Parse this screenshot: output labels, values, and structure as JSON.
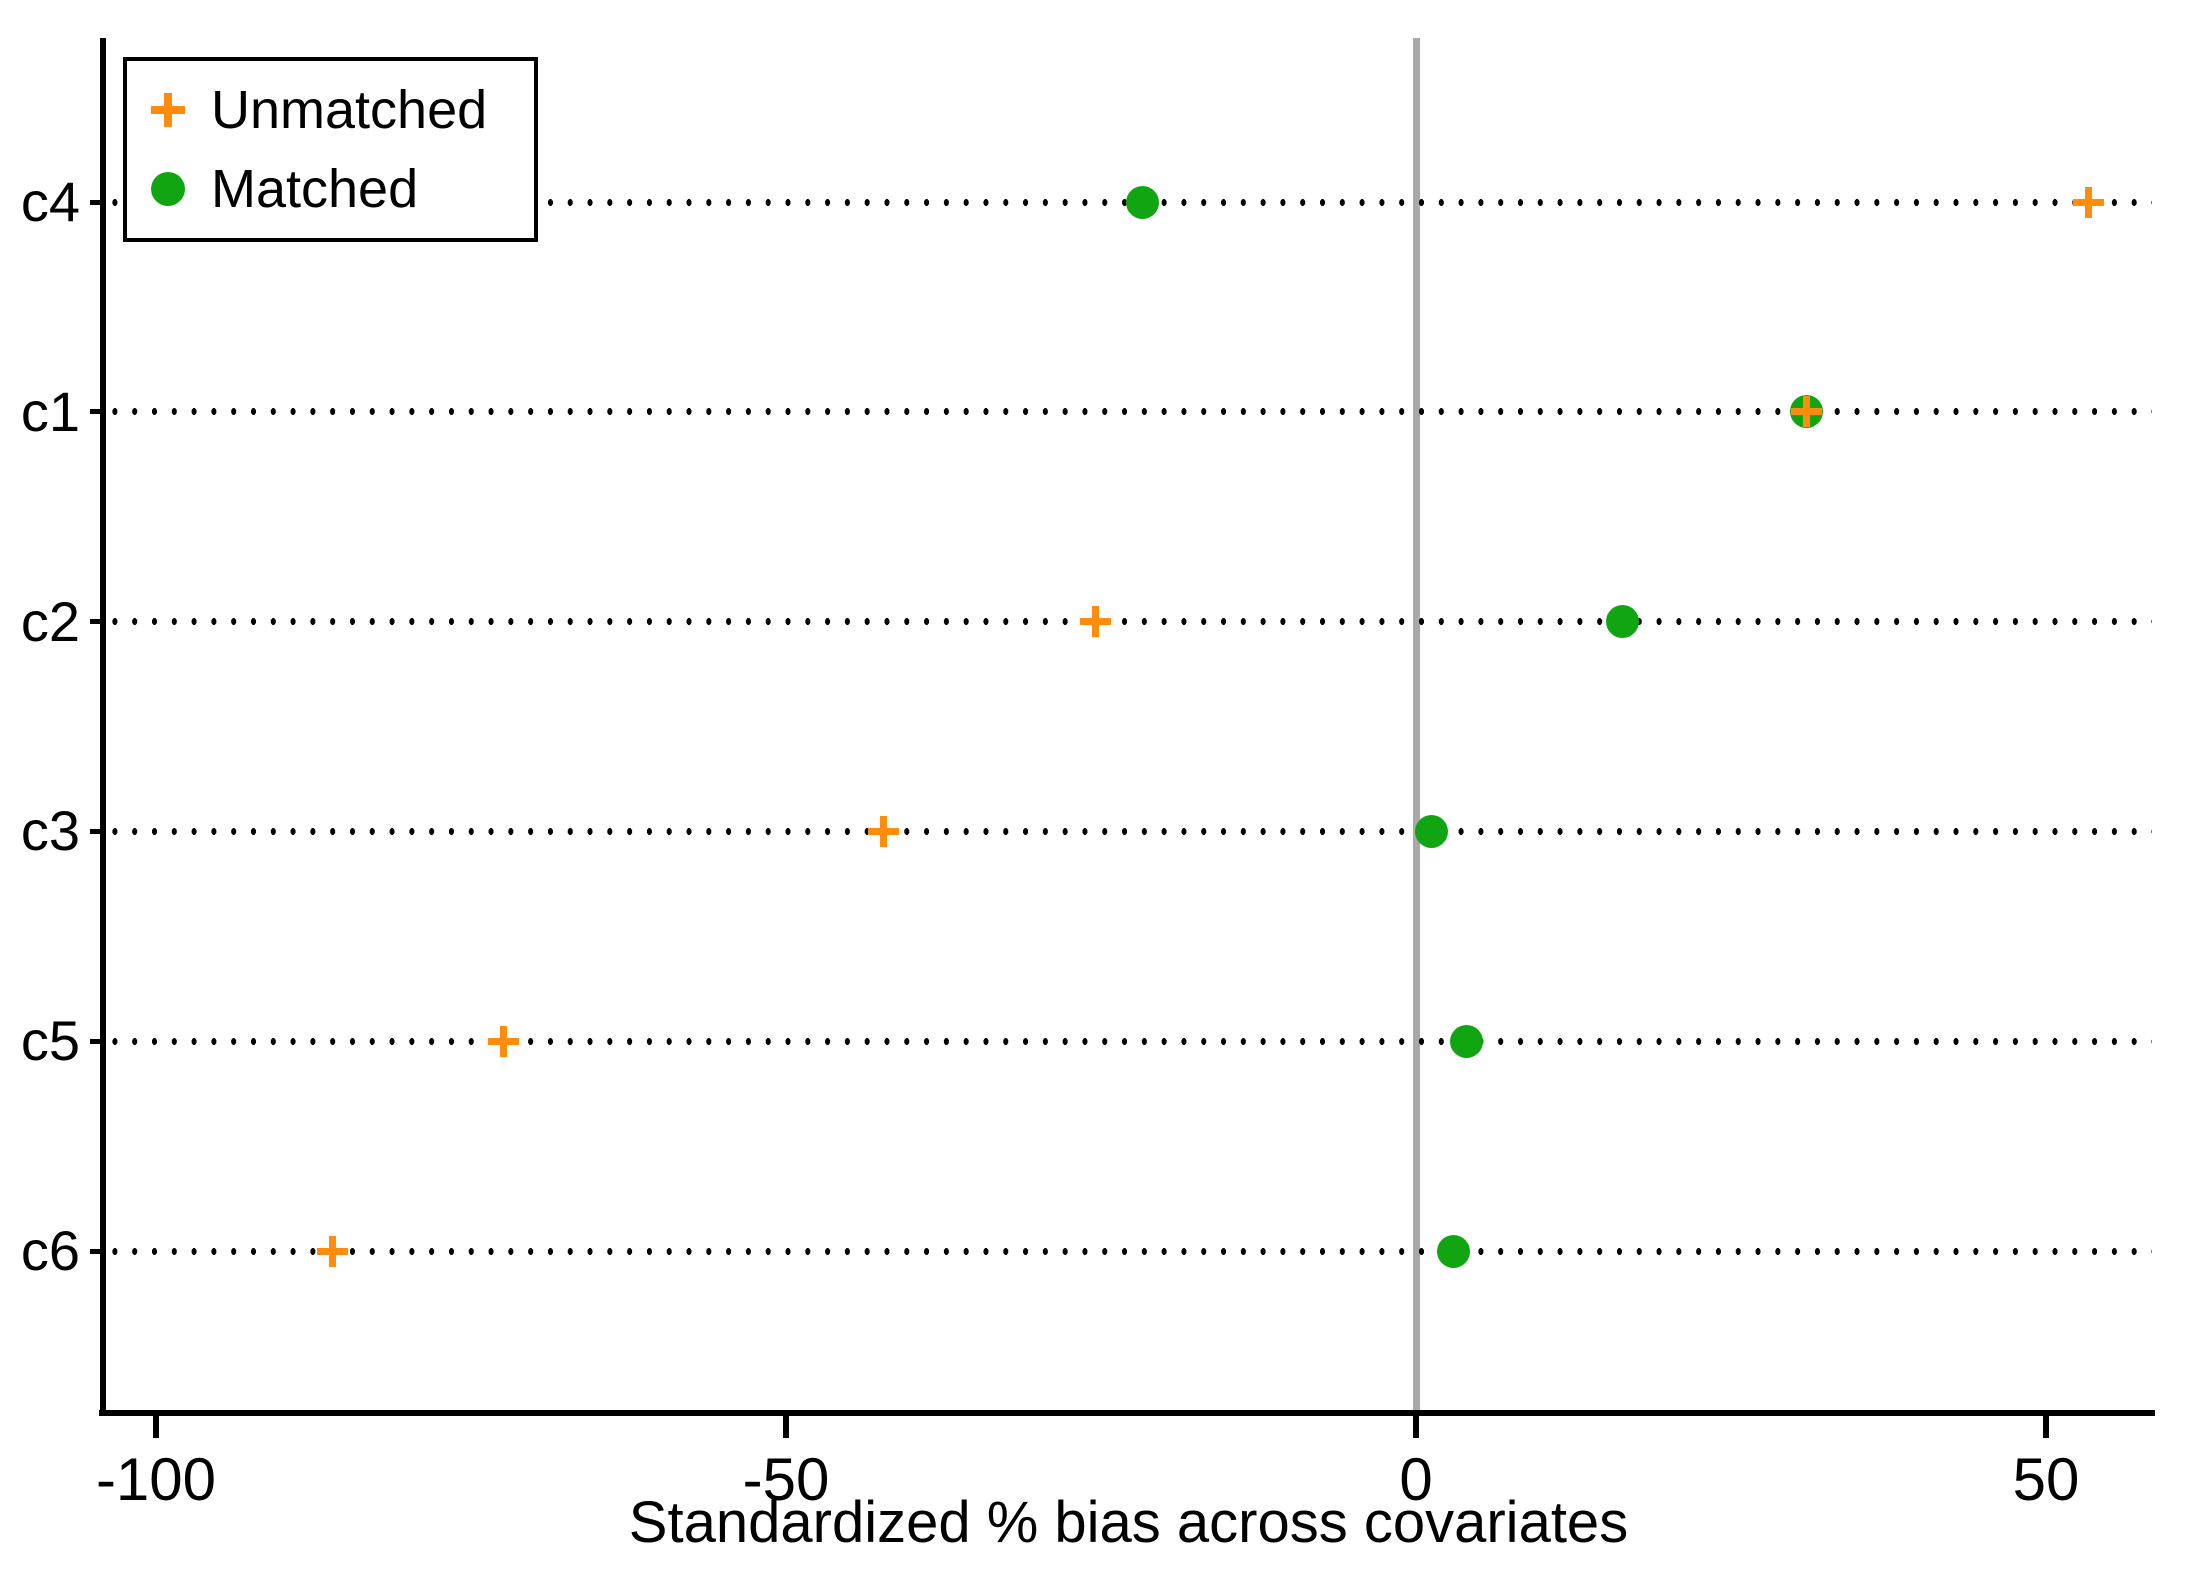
{
  "chart_data": {
    "type": "scatter",
    "variant": "horizontal-dot-plot",
    "title": "",
    "xlabel": "Standardized % bias across covariates",
    "ylabel": "",
    "categories": [
      "c4",
      "c1",
      "c2",
      "c3",
      "c5",
      "c6"
    ],
    "series": [
      {
        "name": "Matched",
        "marker": "circle",
        "color": "#11a611",
        "values": [
          -21.7,
          31.0,
          16.4,
          1.2,
          4.0,
          3.0
        ]
      },
      {
        "name": "Unmatched",
        "marker": "plus",
        "color": "#ff8d0d",
        "values": [
          53.4,
          31.0,
          -25.4,
          -42.3,
          -72.4,
          -86.0
        ]
      }
    ],
    "x_ticks": [
      -100,
      -50,
      0,
      50
    ],
    "xlim": [
      -104,
      58.4
    ],
    "zero_line": {
      "x": 0,
      "color": "#a8a8a8"
    },
    "gridlines": "horizontal-dotted-black",
    "legend_position": "top-left",
    "background": "#ffffff"
  },
  "legend": {
    "unmatched_label": "Unmatched",
    "matched_label": "Matched"
  }
}
